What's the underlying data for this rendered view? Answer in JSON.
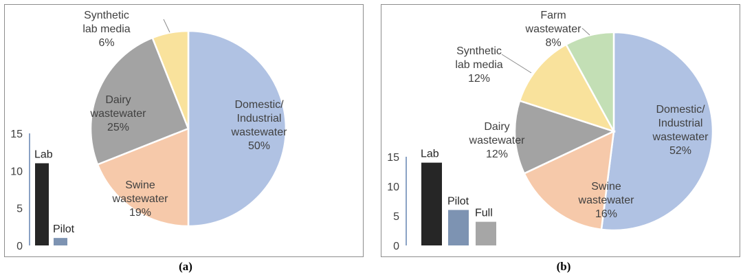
{
  "chart_data": [
    {
      "panel": "(a)",
      "pie": {
        "type": "pie",
        "slices": [
          {
            "name": "Domestic/ Industrial wastewater",
            "label_lines": [
              "Domestic/",
              "Industrial",
              "wastewater"
            ],
            "pct_label": "50%",
            "value": 50,
            "color": "#b0c2e3"
          },
          {
            "name": "Swine wastewater",
            "label_lines": [
              "Swine",
              "wastewater"
            ],
            "pct_label": "19%",
            "value": 19,
            "color": "#f6c9aa"
          },
          {
            "name": "Dairy wastewater",
            "label_lines": [
              "Dairy",
              "wastewater"
            ],
            "pct_label": "25%",
            "value": 25,
            "color": "#a3a3a3"
          },
          {
            "name": "Synthetic lab media",
            "label_lines": [
              "Synthetic",
              "lab media"
            ],
            "pct_label": "6%",
            "value": 6,
            "color": "#f9e29c"
          }
        ]
      },
      "bar": {
        "type": "bar",
        "categories": [
          "Lab",
          "Pilot"
        ],
        "values": [
          11,
          1
        ],
        "colors": [
          "#262626",
          "#7d93b2"
        ],
        "ylim": [
          0,
          15
        ],
        "yticks": [
          "0",
          "5",
          "10",
          "15"
        ]
      }
    },
    {
      "panel": "(b)",
      "pie": {
        "type": "pie",
        "slices": [
          {
            "name": "Domestic/ Industrial wastewater",
            "label_lines": [
              "Domestic/",
              "Industrial",
              "wastewater"
            ],
            "pct_label": "52%",
            "value": 52,
            "color": "#b0c2e3"
          },
          {
            "name": "Swine wastewater",
            "label_lines": [
              "Swine",
              "wastewater"
            ],
            "pct_label": "16%",
            "value": 16,
            "color": "#f6c9aa"
          },
          {
            "name": "Dairy wastewater",
            "label_lines": [
              "Dairy",
              "wastewater"
            ],
            "pct_label": "12%",
            "value": 12,
            "color": "#a3a3a3"
          },
          {
            "name": "Synthetic lab media",
            "label_lines": [
              "Synthetic",
              "lab media"
            ],
            "pct_label": "12%",
            "value": 12,
            "color": "#f9e29c"
          },
          {
            "name": "Farm wastewater",
            "label_lines": [
              "Farm",
              "wastewater"
            ],
            "pct_label": "8%",
            "value": 8,
            "color": "#c3dfb5"
          }
        ]
      },
      "bar": {
        "type": "bar",
        "categories": [
          "Lab",
          "Pilot",
          "Full"
        ],
        "values": [
          14,
          6,
          4
        ],
        "colors": [
          "#262626",
          "#7d93b2",
          "#a6a6a6"
        ],
        "ylim": [
          0,
          15
        ],
        "yticks": [
          "0",
          "5",
          "10",
          "15"
        ]
      }
    }
  ],
  "captions": {
    "a": "(a)",
    "b": "(b)"
  }
}
